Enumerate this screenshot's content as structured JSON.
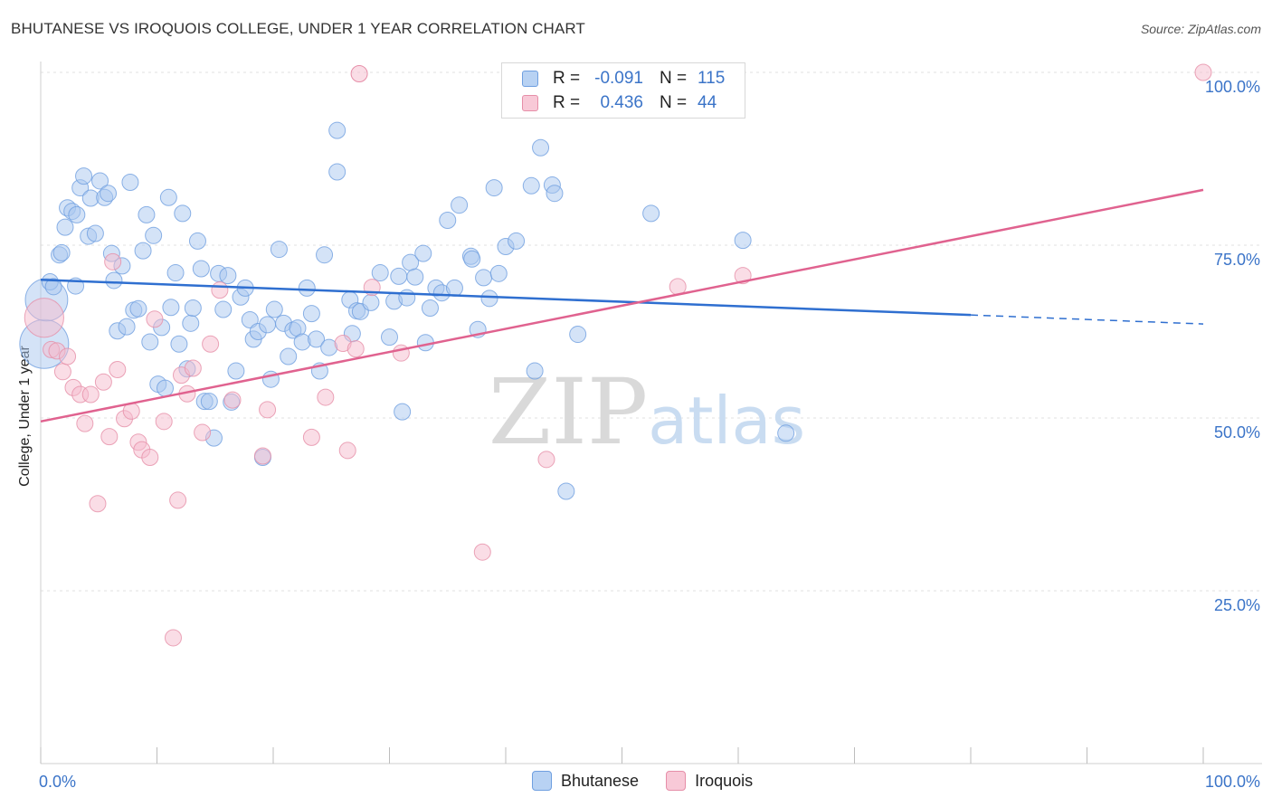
{
  "chart_data": {
    "type": "scatter",
    "title": "BHUTANESE VS IROQUOIS COLLEGE, UNDER 1 YEAR CORRELATION CHART",
    "source": "Source: ZipAtlas.com",
    "ylabel": "College, Under 1 year",
    "xlabel": "",
    "xlim": [
      0,
      100
    ],
    "ylim": [
      0,
      100
    ],
    "x_tick_labels": [
      "0.0%",
      "100.0%"
    ],
    "y_tick_labels": [
      "25.0%",
      "50.0%",
      "75.0%",
      "100.0%"
    ],
    "y_tick_values": [
      25,
      50,
      75,
      100
    ],
    "watermark": "ZIPatlas",
    "legend": [
      {
        "label": "R = ",
        "r": "-0.091",
        "n_label": "N = ",
        "n": "115"
      },
      {
        "label": "R = ",
        "r": "0.436",
        "n_label": "N = ",
        "n": "44"
      }
    ],
    "series": [
      {
        "name": "Bhutanese",
        "color": "#6f9fe0",
        "fill": "#a9c8f0",
        "trend": {
          "x0": 0,
          "y0": 70.0,
          "x1": 80,
          "y1": 64.9,
          "dash_to_x": 100,
          "dash_to_y": 63.6,
          "color": "#2f6fd0"
        },
        "points": [
          [
            0.3,
            60.7
          ],
          [
            0.5,
            67.1
          ],
          [
            0.8,
            69.7
          ],
          [
            1.1,
            69.0
          ],
          [
            1.6,
            73.6
          ],
          [
            1.8,
            73.9
          ],
          [
            2.1,
            77.6
          ],
          [
            2.3,
            80.4
          ],
          [
            2.7,
            79.9
          ],
          [
            3.1,
            79.4
          ],
          [
            3.4,
            83.3
          ],
          [
            3.7,
            85.0
          ],
          [
            4.1,
            76.3
          ],
          [
            4.3,
            81.8
          ],
          [
            4.7,
            76.7
          ],
          [
            5.1,
            84.3
          ],
          [
            5.5,
            81.9
          ],
          [
            5.8,
            82.5
          ],
          [
            6.1,
            73.8
          ],
          [
            6.3,
            69.9
          ],
          [
            6.6,
            62.6
          ],
          [
            7.0,
            72.0
          ],
          [
            7.4,
            63.2
          ],
          [
            7.7,
            84.1
          ],
          [
            8.0,
            65.6
          ],
          [
            8.4,
            65.8
          ],
          [
            8.8,
            74.2
          ],
          [
            9.1,
            79.4
          ],
          [
            9.4,
            61.0
          ],
          [
            9.7,
            76.4
          ],
          [
            10.1,
            54.9
          ],
          [
            10.4,
            63.1
          ],
          [
            10.7,
            54.3
          ],
          [
            11.0,
            81.9
          ],
          [
            11.2,
            66.0
          ],
          [
            11.6,
            71.0
          ],
          [
            11.9,
            60.7
          ],
          [
            12.2,
            79.6
          ],
          [
            12.6,
            57.1
          ],
          [
            12.9,
            63.7
          ],
          [
            13.1,
            65.9
          ],
          [
            13.5,
            75.6
          ],
          [
            13.8,
            71.6
          ],
          [
            14.1,
            52.4
          ],
          [
            14.5,
            52.4
          ],
          [
            14.9,
            47.1
          ],
          [
            15.3,
            70.9
          ],
          [
            15.7,
            65.7
          ],
          [
            16.1,
            70.6
          ],
          [
            16.4,
            52.3
          ],
          [
            16.8,
            56.8
          ],
          [
            17.2,
            67.5
          ],
          [
            17.6,
            68.8
          ],
          [
            18.0,
            64.2
          ],
          [
            18.3,
            61.4
          ],
          [
            18.7,
            62.5
          ],
          [
            19.1,
            44.3
          ],
          [
            19.5,
            63.5
          ],
          [
            19.8,
            55.6
          ],
          [
            20.1,
            65.7
          ],
          [
            20.5,
            74.4
          ],
          [
            20.9,
            63.7
          ],
          [
            21.3,
            58.9
          ],
          [
            21.7,
            62.7
          ],
          [
            22.1,
            63.0
          ],
          [
            22.5,
            61.0
          ],
          [
            22.9,
            68.8
          ],
          [
            23.3,
            65.1
          ],
          [
            23.7,
            61.4
          ],
          [
            24.0,
            56.8
          ],
          [
            24.4,
            73.6
          ],
          [
            24.8,
            60.2
          ],
          [
            25.5,
            85.6
          ],
          [
            25.5,
            91.6
          ],
          [
            26.6,
            67.1
          ],
          [
            26.8,
            62.2
          ],
          [
            27.2,
            65.5
          ],
          [
            27.5,
            65.4
          ],
          [
            28.4,
            66.7
          ],
          [
            29.2,
            71.0
          ],
          [
            30.0,
            61.7
          ],
          [
            30.4,
            66.9
          ],
          [
            30.8,
            70.5
          ],
          [
            31.1,
            50.9
          ],
          [
            31.5,
            67.4
          ],
          [
            31.8,
            72.5
          ],
          [
            32.2,
            70.4
          ],
          [
            32.9,
            73.8
          ],
          [
            33.1,
            60.9
          ],
          [
            33.5,
            65.9
          ],
          [
            34.0,
            68.8
          ],
          [
            34.5,
            68.1
          ],
          [
            35.0,
            78.6
          ],
          [
            35.6,
            68.8
          ],
          [
            36.0,
            80.8
          ],
          [
            37.0,
            73.4
          ],
          [
            37.1,
            73.0
          ],
          [
            37.6,
            62.8
          ],
          [
            38.1,
            70.3
          ],
          [
            38.6,
            67.3
          ],
          [
            39.0,
            83.3
          ],
          [
            39.4,
            70.9
          ],
          [
            40.0,
            74.8
          ],
          [
            40.9,
            75.6
          ],
          [
            42.5,
            56.8
          ],
          [
            43.0,
            89.1
          ],
          [
            44.0,
            83.7
          ],
          [
            44.2,
            82.5
          ],
          [
            45.2,
            39.4
          ],
          [
            46.2,
            62.1
          ],
          [
            52.5,
            79.6
          ],
          [
            60.4,
            75.7
          ],
          [
            64.1,
            47.8
          ],
          [
            42.2,
            83.6
          ],
          [
            3.0,
            69.1
          ]
        ],
        "sizes": [
          3,
          2.6,
          1,
          1,
          1,
          1,
          1,
          1,
          1,
          1,
          1,
          1,
          1,
          1,
          1,
          1,
          1,
          1,
          1,
          1,
          1,
          1,
          1,
          1,
          1,
          1,
          1,
          1,
          1,
          1,
          1,
          1,
          1,
          1,
          1,
          1,
          1,
          1,
          1,
          1,
          1,
          1,
          1,
          1,
          1,
          1,
          1,
          1,
          1,
          1,
          1,
          1,
          1,
          1,
          1,
          1,
          1,
          1,
          1,
          1,
          1,
          1,
          1,
          1,
          1,
          1,
          1,
          1,
          1,
          1,
          1,
          1,
          1,
          1,
          1,
          1,
          1,
          1,
          1,
          1,
          1,
          1,
          1,
          1,
          1,
          1,
          1,
          1,
          1,
          1,
          1,
          1,
          1,
          1,
          1,
          1,
          1,
          1,
          1,
          1,
          1,
          1,
          1,
          1,
          1,
          1,
          1,
          1,
          1,
          1,
          1,
          1,
          1,
          1,
          1
        ]
      },
      {
        "name": "Iroquois",
        "color": "#e68ea8",
        "fill": "#f6bccd",
        "trend": {
          "x0": 0,
          "y0": 49.5,
          "x1": 100,
          "y1": 83.0,
          "color": "#e0628f"
        },
        "points": [
          [
            0.3,
            64.5
          ],
          [
            0.9,
            59.9
          ],
          [
            1.4,
            59.7
          ],
          [
            1.9,
            56.7
          ],
          [
            2.3,
            58.9
          ],
          [
            2.8,
            54.4
          ],
          [
            3.4,
            53.4
          ],
          [
            3.8,
            49.2
          ],
          [
            4.3,
            53.4
          ],
          [
            4.9,
            37.6
          ],
          [
            5.4,
            55.2
          ],
          [
            5.9,
            47.3
          ],
          [
            6.2,
            72.6
          ],
          [
            6.6,
            57.0
          ],
          [
            7.2,
            49.9
          ],
          [
            7.8,
            51.0
          ],
          [
            8.4,
            46.5
          ],
          [
            8.7,
            45.4
          ],
          [
            9.4,
            44.3
          ],
          [
            9.8,
            64.3
          ],
          [
            10.6,
            49.5
          ],
          [
            11.4,
            18.2
          ],
          [
            11.8,
            38.1
          ],
          [
            12.1,
            56.2
          ],
          [
            12.6,
            53.5
          ],
          [
            13.1,
            57.2
          ],
          [
            13.9,
            47.9
          ],
          [
            14.6,
            60.7
          ],
          [
            15.4,
            68.5
          ],
          [
            16.5,
            52.6
          ],
          [
            19.1,
            44.5
          ],
          [
            19.5,
            51.2
          ],
          [
            23.3,
            47.2
          ],
          [
            24.5,
            53.0
          ],
          [
            26.0,
            60.8
          ],
          [
            26.4,
            45.3
          ],
          [
            27.1,
            60.0
          ],
          [
            28.5,
            68.9
          ],
          [
            31.0,
            59.4
          ],
          [
            38.0,
            30.6
          ],
          [
            43.5,
            44.0
          ],
          [
            54.8,
            69.0
          ],
          [
            60.4,
            70.6
          ],
          [
            100.0,
            100.0
          ]
        ],
        "sizes": [
          2.4,
          1,
          1,
          1,
          1,
          1,
          1,
          1,
          1,
          1,
          1,
          1,
          1,
          1,
          1,
          1,
          1,
          1,
          1,
          1,
          1,
          1,
          1,
          1,
          1,
          1,
          1,
          1,
          1,
          1,
          1,
          1,
          1,
          1,
          1,
          1,
          1,
          1,
          1,
          1,
          1,
          1,
          1,
          1
        ]
      }
    ],
    "extra_points_iroquois_top": [
      [
        27.4,
        99.8
      ]
    ]
  },
  "legend_series_names": [
    "Bhutanese",
    "Iroquois"
  ]
}
